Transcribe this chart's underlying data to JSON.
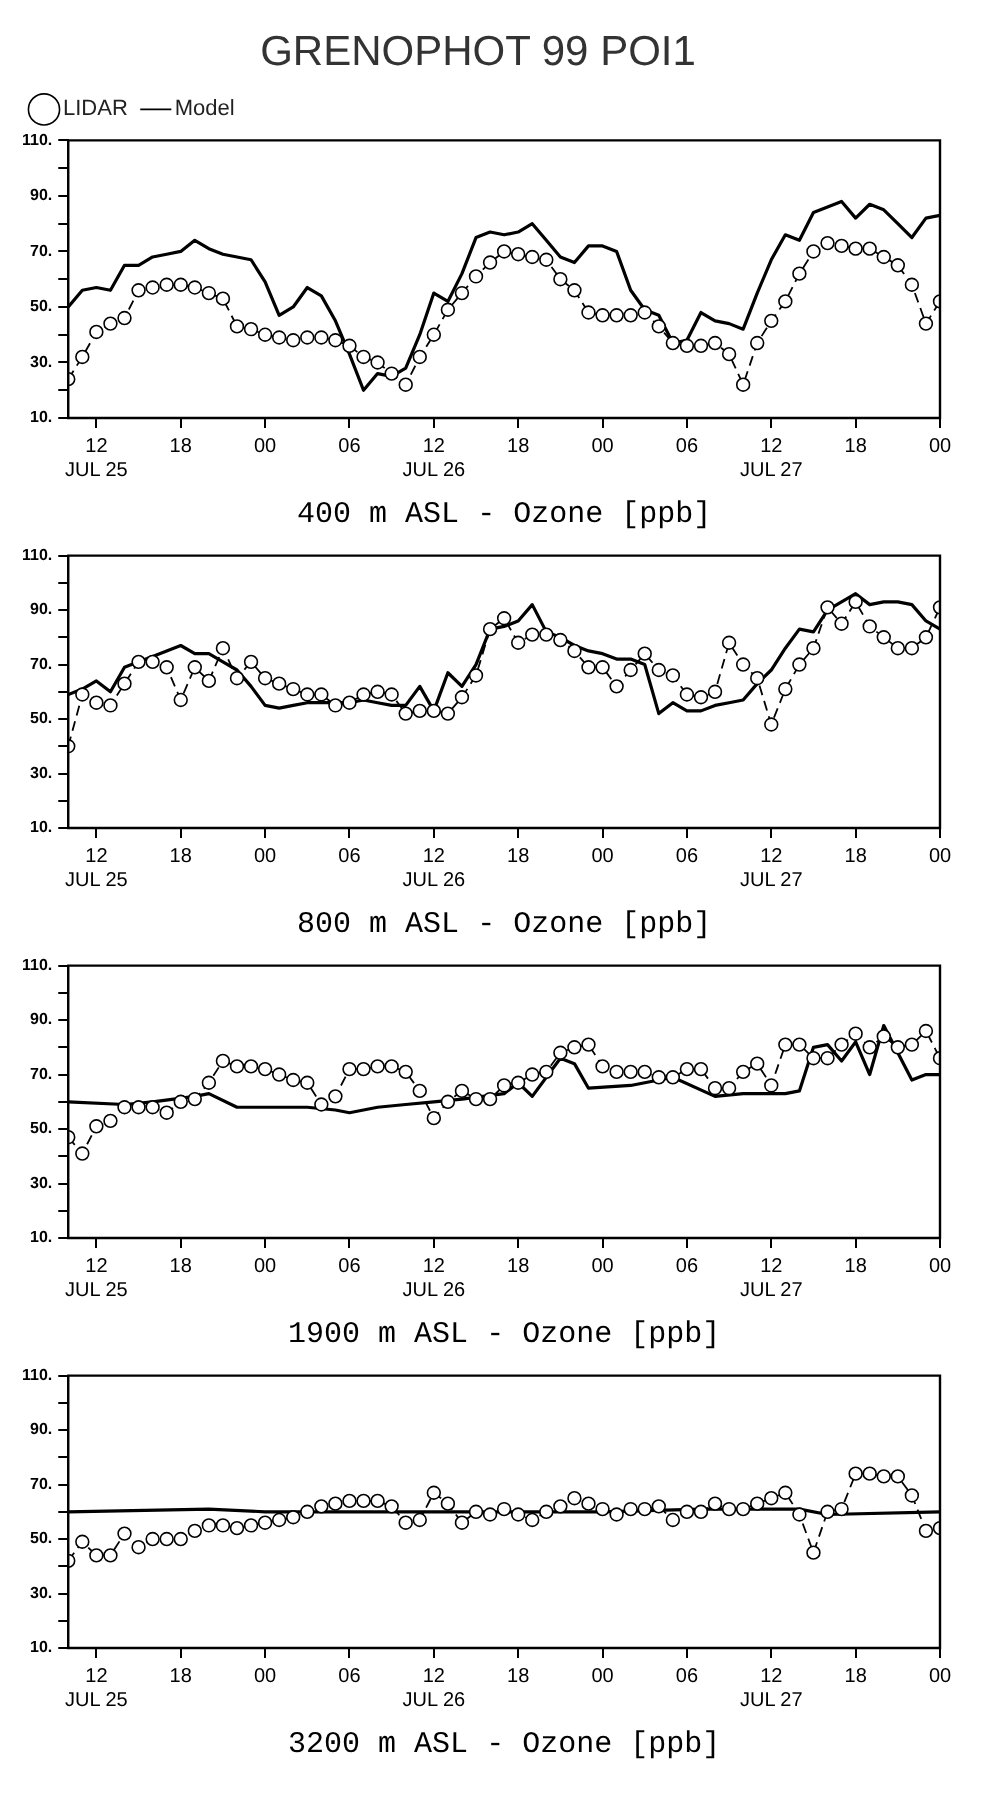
{
  "chart_data": [
    {
      "type": "line",
      "title": "GRENOPHOT 99 POI1",
      "xlabel": "400 m ASL - Ozone [ppb]",
      "legend": "top left",
      "grid": false,
      "xlim": [
        "--07-25T10:00",
        "--07-28T00:00"
      ],
      "xticks": [
        {
          "value": "--07-25T12:00",
          "label": "12\nJUL 25"
        },
        {
          "value": "--07-25T18:00",
          "label": "18"
        },
        {
          "value": "--07-26T00:00",
          "label": "00"
        },
        {
          "value": "--07-26T06:00",
          "label": "06"
        },
        {
          "value": "--07-26T12:00",
          "label": "12\nJUL 26"
        },
        {
          "value": "--07-26T18:00",
          "label": "18"
        },
        {
          "value": "--07-27T00:00",
          "label": "00"
        },
        {
          "value": "--07-27T06:00",
          "label": "06"
        },
        {
          "value": "--07-27T12:00",
          "label": "12\nJUL 27"
        },
        {
          "value": "--07-27T18:00",
          "label": "18"
        },
        {
          "value": "--07-28T00:00",
          "label": "00"
        }
      ],
      "ylim": [
        10,
        110
      ],
      "yticks": [
        {
          "value": 10,
          "label": "10."
        },
        {
          "value": 20,
          "label": null
        },
        {
          "value": 30,
          "label": "30."
        },
        {
          "value": 40,
          "label": null
        },
        {
          "value": 50,
          "label": "50."
        },
        {
          "value": 60,
          "label": null
        },
        {
          "value": 70,
          "label": "70."
        },
        {
          "value": 80,
          "label": null
        },
        {
          "value": 90,
          "label": "90."
        },
        {
          "value": 100,
          "label": null
        },
        {
          "value": 110,
          "label": "110."
        }
      ],
      "x": [
        "--07-25T10:00",
        "--07-25T11:00",
        "--07-25T12:00",
        "--07-25T13:00",
        "--07-25T14:00",
        "--07-25T15:00",
        "--07-25T16:00",
        "--07-25T17:00",
        "--07-25T18:00",
        "--07-25T19:00",
        "--07-25T20:00",
        "--07-25T21:00",
        "--07-25T22:00",
        "--07-25T23:00",
        "--07-26T00:00",
        "--07-26T01:00",
        "--07-26T02:00",
        "--07-26T03:00",
        "--07-26T04:00",
        "--07-26T05:00",
        "--07-26T06:00",
        "--07-26T07:00",
        "--07-26T08:00",
        "--07-26T09:00",
        "--07-26T10:00",
        "--07-26T11:00",
        "--07-26T12:00",
        "--07-26T13:00",
        "--07-26T14:00",
        "--07-26T15:00",
        "--07-26T16:00",
        "--07-26T17:00",
        "--07-26T18:00",
        "--07-26T19:00",
        "--07-26T20:00",
        "--07-26T21:00",
        "--07-26T22:00",
        "--07-26T23:00",
        "--07-27T00:00",
        "--07-27T01:00",
        "--07-27T02:00",
        "--07-27T03:00",
        "--07-27T04:00",
        "--07-27T05:00",
        "--07-27T06:00",
        "--07-27T07:00",
        "--07-27T08:00",
        "--07-27T09:00",
        "--07-27T10:00",
        "--07-27T11:00",
        "--07-27T12:00",
        "--07-27T13:00",
        "--07-27T14:00",
        "--07-27T15:00",
        "--07-27T16:00",
        "--07-27T17:00",
        "--07-27T18:00",
        "--07-27T19:00",
        "--07-27T20:00",
        "--07-27T21:00",
        "--07-27T22:00",
        "--07-27T23:00",
        "--07-28T00:00"
      ],
      "series": [
        {
          "name": "LIDAR",
          "color": "#000000",
          "marker": "circle",
          "line_style": "dashed",
          "values": [
            24,
            32,
            41,
            44,
            46,
            56,
            57,
            58,
            58,
            57,
            55,
            53,
            43,
            42,
            40,
            39,
            38,
            39,
            39,
            38,
            36,
            32,
            30,
            26,
            22,
            32,
            40,
            49,
            55,
            61,
            66,
            70,
            69,
            68,
            67,
            60,
            56,
            48,
            47,
            47,
            47,
            48,
            43,
            37,
            36,
            36,
            37,
            33,
            22,
            37,
            45,
            52,
            62,
            70,
            73,
            72,
            71,
            71,
            68,
            65,
            58,
            44,
            52
          ]
        },
        {
          "name": "Model",
          "color": "#000000",
          "marker": "none",
          "line_style": "solid",
          "values": [
            50,
            56,
            57,
            56,
            65,
            65,
            68,
            69,
            70,
            74,
            71,
            69,
            68,
            67,
            59,
            47,
            50,
            57,
            54,
            45,
            33,
            20,
            26,
            25,
            28,
            40,
            55,
            52,
            62,
            75,
            77,
            76,
            77,
            80,
            74,
            68,
            66,
            72,
            72,
            70,
            56,
            49,
            47,
            37,
            38,
            48,
            45,
            44,
            42,
            55,
            67,
            76,
            74,
            84,
            86,
            88,
            82,
            87,
            85,
            80,
            75,
            82,
            83
          ]
        }
      ]
    },
    {
      "type": "line",
      "xlabel": "800 m ASL - Ozone [ppb]",
      "grid": false,
      "xlim": [
        "--07-25T10:00",
        "--07-28T00:00"
      ],
      "xticks": [
        {
          "value": "--07-25T12:00",
          "label": "12\nJUL 25"
        },
        {
          "value": "--07-25T18:00",
          "label": "18"
        },
        {
          "value": "--07-26T00:00",
          "label": "00"
        },
        {
          "value": "--07-26T06:00",
          "label": "06"
        },
        {
          "value": "--07-26T12:00",
          "label": "12\nJUL 26"
        },
        {
          "value": "--07-26T18:00",
          "label": "18"
        },
        {
          "value": "--07-27T00:00",
          "label": "00"
        },
        {
          "value": "--07-27T06:00",
          "label": "06"
        },
        {
          "value": "--07-27T12:00",
          "label": "12\nJUL 27"
        },
        {
          "value": "--07-27T18:00",
          "label": "18"
        },
        {
          "value": "--07-28T00:00",
          "label": "00"
        }
      ],
      "ylim": [
        10,
        110
      ],
      "yticks": [
        {
          "value": 10,
          "label": "10."
        },
        {
          "value": 20,
          "label": null
        },
        {
          "value": 30,
          "label": "30."
        },
        {
          "value": 40,
          "label": null
        },
        {
          "value": 50,
          "label": "50."
        },
        {
          "value": 60,
          "label": null
        },
        {
          "value": 70,
          "label": "70."
        },
        {
          "value": 80,
          "label": null
        },
        {
          "value": 90,
          "label": "90."
        },
        {
          "value": 100,
          "label": null
        },
        {
          "value": 110,
          "label": "110."
        }
      ],
      "x": [
        "--07-25T10:00",
        "--07-25T11:00",
        "--07-25T12:00",
        "--07-25T13:00",
        "--07-25T14:00",
        "--07-25T15:00",
        "--07-25T16:00",
        "--07-25T17:00",
        "--07-25T18:00",
        "--07-25T19:00",
        "--07-25T20:00",
        "--07-25T21:00",
        "--07-25T22:00",
        "--07-25T23:00",
        "--07-26T00:00",
        "--07-26T01:00",
        "--07-26T02:00",
        "--07-26T03:00",
        "--07-26T04:00",
        "--07-26T05:00",
        "--07-26T06:00",
        "--07-26T07:00",
        "--07-26T08:00",
        "--07-26T09:00",
        "--07-26T10:00",
        "--07-26T11:00",
        "--07-26T12:00",
        "--07-26T13:00",
        "--07-26T14:00",
        "--07-26T15:00",
        "--07-26T16:00",
        "--07-26T17:00",
        "--07-26T18:00",
        "--07-26T19:00",
        "--07-26T20:00",
        "--07-26T21:00",
        "--07-26T22:00",
        "--07-26T23:00",
        "--07-27T00:00",
        "--07-27T01:00",
        "--07-27T02:00",
        "--07-27T03:00",
        "--07-27T04:00",
        "--07-27T05:00",
        "--07-27T06:00",
        "--07-27T07:00",
        "--07-27T08:00",
        "--07-27T09:00",
        "--07-27T10:00",
        "--07-27T11:00",
        "--07-27T12:00",
        "--07-27T13:00",
        "--07-27T14:00",
        "--07-27T15:00",
        "--07-27T16:00",
        "--07-27T17:00",
        "--07-27T18:00",
        "--07-27T19:00",
        "--07-27T20:00",
        "--07-27T21:00",
        "--07-27T22:00",
        "--07-27T23:00",
        "--07-28T00:00"
      ],
      "series": [
        {
          "color": "#000000",
          "marker": "circle",
          "line_style": "dashed",
          "values": [
            40,
            59,
            56,
            55,
            63,
            71,
            71,
            69,
            57,
            69,
            64,
            76,
            65,
            71,
            65,
            63,
            61,
            59,
            59,
            55,
            56,
            59,
            60,
            59,
            52,
            53,
            53,
            52,
            58,
            66,
            83,
            87,
            78,
            81,
            81,
            79,
            75,
            69,
            69,
            62,
            68,
            74,
            68,
            66,
            59,
            58,
            60,
            78,
            70,
            65,
            48,
            61,
            70,
            76,
            91,
            85,
            93,
            84,
            80,
            76,
            76,
            80,
            91
          ]
        },
        {
          "color": "#000000",
          "marker": "none",
          "line_style": "solid",
          "values": [
            59,
            61,
            64,
            60,
            69,
            71,
            73,
            75,
            77,
            74,
            74,
            71,
            68,
            62,
            55,
            54,
            55,
            56,
            56,
            56,
            56,
            57,
            56,
            55,
            55,
            62,
            53,
            67,
            62,
            70,
            83,
            84,
            86,
            92,
            82,
            80,
            77,
            75,
            74,
            72,
            72,
            70,
            52,
            56,
            53,
            53,
            55,
            56,
            57,
            63,
            68,
            76,
            83,
            82,
            90,
            93,
            96,
            92,
            93,
            93,
            92,
            86,
            83
          ]
        }
      ]
    },
    {
      "type": "line",
      "xlabel": "1900 m ASL - Ozone [ppb]",
      "grid": false,
      "xlim": [
        "--07-25T10:00",
        "--07-28T00:00"
      ],
      "xticks": [
        {
          "value": "--07-25T12:00",
          "label": "12\nJUL 25"
        },
        {
          "value": "--07-25T18:00",
          "label": "18"
        },
        {
          "value": "--07-26T00:00",
          "label": "00"
        },
        {
          "value": "--07-26T06:00",
          "label": "06"
        },
        {
          "value": "--07-26T12:00",
          "label": "12\nJUL 26"
        },
        {
          "value": "--07-26T18:00",
          "label": "18"
        },
        {
          "value": "--07-27T00:00",
          "label": "00"
        },
        {
          "value": "--07-27T06:00",
          "label": "06"
        },
        {
          "value": "--07-27T12:00",
          "label": "12\nJUL 27"
        },
        {
          "value": "--07-27T18:00",
          "label": "18"
        },
        {
          "value": "--07-28T00:00",
          "label": "00"
        }
      ],
      "ylim": [
        10,
        110
      ],
      "yticks": [
        {
          "value": 10,
          "label": "10."
        },
        {
          "value": 20,
          "label": null
        },
        {
          "value": 30,
          "label": "30."
        },
        {
          "value": 40,
          "label": null
        },
        {
          "value": 50,
          "label": "50."
        },
        {
          "value": 60,
          "label": null
        },
        {
          "value": 70,
          "label": "70."
        },
        {
          "value": 80,
          "label": null
        },
        {
          "value": 90,
          "label": "90."
        },
        {
          "value": 100,
          "label": null
        },
        {
          "value": 110,
          "label": "110."
        }
      ],
      "x": [
        "--07-25T10:00",
        "--07-25T11:00",
        "--07-25T12:00",
        "--07-25T13:00",
        "--07-25T14:00",
        "--07-25T15:00",
        "--07-25T16:00",
        "--07-25T17:00",
        "--07-25T18:00",
        "--07-25T19:00",
        "--07-25T20:00",
        "--07-25T21:00",
        "--07-25T22:00",
        "--07-25T23:00",
        "--07-26T00:00",
        "--07-26T01:00",
        "--07-26T02:00",
        "--07-26T03:00",
        "--07-26T04:00",
        "--07-26T05:00",
        "--07-26T06:00",
        "--07-26T07:00",
        "--07-26T08:00",
        "--07-26T09:00",
        "--07-26T10:00",
        "--07-26T11:00",
        "--07-26T12:00",
        "--07-26T13:00",
        "--07-26T14:00",
        "--07-26T15:00",
        "--07-26T16:00",
        "--07-26T17:00",
        "--07-26T18:00",
        "--07-26T19:00",
        "--07-26T20:00",
        "--07-26T21:00",
        "--07-26T22:00",
        "--07-26T23:00",
        "--07-27T00:00",
        "--07-27T01:00",
        "--07-27T02:00",
        "--07-27T03:00",
        "--07-27T04:00",
        "--07-27T05:00",
        "--07-27T06:00",
        "--07-27T07:00",
        "--07-27T08:00",
        "--07-27T09:00",
        "--07-27T10:00",
        "--07-27T11:00",
        "--07-27T12:00",
        "--07-27T13:00",
        "--07-27T14:00",
        "--07-27T15:00",
        "--07-27T16:00",
        "--07-27T17:00",
        "--07-27T18:00",
        "--07-27T19:00",
        "--07-27T20:00",
        "--07-27T21:00",
        "--07-27T22:00",
        "--07-27T23:00",
        "--07-28T00:00"
      ],
      "series": [
        {
          "color": "#000000",
          "marker": "circle",
          "line_style": "dashed",
          "values": [
            47,
            41,
            51,
            53,
            58,
            58,
            58,
            56,
            60,
            61,
            67,
            75,
            73,
            73,
            72,
            70,
            68,
            67,
            59,
            62,
            72,
            72,
            73,
            73,
            71,
            64,
            54,
            60,
            64,
            61,
            61,
            66,
            67,
            70,
            71,
            78,
            80,
            81,
            73,
            71,
            71,
            71,
            69,
            69,
            72,
            72,
            65,
            65,
            71,
            74,
            66,
            81,
            81,
            76,
            76,
            81,
            85,
            80,
            84,
            80,
            81,
            86,
            76
          ]
        },
        {
          "color": "#000000",
          "marker": "none",
          "line_style": "solid",
          "x": [
            "--07-25T10:00",
            "--07-25T14:00",
            "--07-25T16:00",
            "--07-25T19:00",
            "--07-25T20:00",
            "--07-25T22:00",
            "--07-26T00:00",
            "--07-26T03:00",
            "--07-26T05:00",
            "--07-26T06:00",
            "--07-26T08:00",
            "--07-26T10:00",
            "--07-26T12:00",
            "--07-26T14:00",
            "--07-26T17:00",
            "--07-26T18:00",
            "--07-26T19:00",
            "--07-26T21:00",
            "--07-26T22:00",
            "--07-26T23:00",
            "--07-27T02:00",
            "--07-27T04:00",
            "--07-27T05:00",
            "--07-27T08:00",
            "--07-27T10:00",
            "--07-27T13:00",
            "--07-27T14:00",
            "--07-27T15:00",
            "--07-27T16:00",
            "--07-27T17:00",
            "--07-27T18:00",
            "--07-27T19:00",
            "--07-27T20:00",
            "--07-27T22:00",
            "--07-27T23:00",
            "--07-28T00:00"
          ],
          "values": [
            60,
            59,
            60,
            62,
            63,
            58,
            58,
            58,
            57,
            56,
            58,
            59,
            60,
            61,
            63,
            67,
            62,
            76,
            74,
            65,
            66,
            68,
            69,
            62,
            63,
            63,
            64,
            80,
            81,
            75,
            82,
            70,
            88,
            68,
            70,
            70
          ]
        }
      ]
    },
    {
      "type": "line",
      "xlabel": "3200 m ASL - Ozone [ppb]",
      "grid": false,
      "xlim": [
        "--07-25T10:00",
        "--07-28T00:00"
      ],
      "xticks": [
        {
          "value": "--07-25T12:00",
          "label": "12\nJUL 25"
        },
        {
          "value": "--07-25T18:00",
          "label": "18"
        },
        {
          "value": "--07-26T00:00",
          "label": "00"
        },
        {
          "value": "--07-26T06:00",
          "label": "06"
        },
        {
          "value": "--07-26T12:00",
          "label": "12\nJUL 26"
        },
        {
          "value": "--07-26T18:00",
          "label": "18"
        },
        {
          "value": "--07-27T00:00",
          "label": "00"
        },
        {
          "value": "--07-27T06:00",
          "label": "06"
        },
        {
          "value": "--07-27T12:00",
          "label": "12\nJUL 27"
        },
        {
          "value": "--07-27T18:00",
          "label": "18"
        },
        {
          "value": "--07-28T00:00",
          "label": "00"
        }
      ],
      "ylim": [
        10,
        110
      ],
      "yticks": [
        {
          "value": 10,
          "label": "10."
        },
        {
          "value": 20,
          "label": null
        },
        {
          "value": 30,
          "label": "30."
        },
        {
          "value": 40,
          "label": null
        },
        {
          "value": 50,
          "label": "50."
        },
        {
          "value": 60,
          "label": null
        },
        {
          "value": 70,
          "label": "70."
        },
        {
          "value": 80,
          "label": null
        },
        {
          "value": 90,
          "label": "90."
        },
        {
          "value": 100,
          "label": null
        },
        {
          "value": 110,
          "label": "110."
        }
      ],
      "x": [
        "--07-25T10:00",
        "--07-25T11:00",
        "--07-25T12:00",
        "--07-25T13:00",
        "--07-25T14:00",
        "--07-25T15:00",
        "--07-25T16:00",
        "--07-25T17:00",
        "--07-25T18:00",
        "--07-25T19:00",
        "--07-25T20:00",
        "--07-25T21:00",
        "--07-25T22:00",
        "--07-25T23:00",
        "--07-26T00:00",
        "--07-26T01:00",
        "--07-26T02:00",
        "--07-26T03:00",
        "--07-26T04:00",
        "--07-26T05:00",
        "--07-26T06:00",
        "--07-26T07:00",
        "--07-26T08:00",
        "--07-26T09:00",
        "--07-26T10:00",
        "--07-26T11:00",
        "--07-26T12:00",
        "--07-26T13:00",
        "--07-26T14:00",
        "--07-26T15:00",
        "--07-26T16:00",
        "--07-26T17:00",
        "--07-26T18:00",
        "--07-26T19:00",
        "--07-26T20:00",
        "--07-26T21:00",
        "--07-26T22:00",
        "--07-26T23:00",
        "--07-27T00:00",
        "--07-27T01:00",
        "--07-27T02:00",
        "--07-27T03:00",
        "--07-27T04:00",
        "--07-27T05:00",
        "--07-27T06:00",
        "--07-27T07:00",
        "--07-27T08:00",
        "--07-27T09:00",
        "--07-27T10:00",
        "--07-27T11:00",
        "--07-27T12:00",
        "--07-27T13:00",
        "--07-27T14:00",
        "--07-27T15:00",
        "--07-27T16:00",
        "--07-27T17:00",
        "--07-27T18:00",
        "--07-27T19:00",
        "--07-27T20:00",
        "--07-27T21:00",
        "--07-27T22:00",
        "--07-27T23:00",
        "--07-28T00:00"
      ],
      "series": [
        {
          "color": "#000000",
          "marker": "circle",
          "line_style": "dashed",
          "values": [
            42,
            49,
            44,
            44,
            52,
            47,
            50,
            50,
            50,
            53,
            55,
            55,
            54,
            55,
            56,
            57,
            58,
            60,
            62,
            63,
            64,
            64,
            64,
            62,
            56,
            57,
            67,
            63,
            56,
            60,
            59,
            61,
            59,
            57,
            60,
            62,
            65,
            63,
            61,
            59,
            61,
            61,
            62,
            57,
            60,
            60,
            63,
            61,
            61,
            63,
            65,
            67,
            59,
            45,
            60,
            61,
            74,
            74,
            73,
            73,
            66,
            53,
            54
          ]
        },
        {
          "color": "#000000",
          "marker": "none",
          "line_style": "solid",
          "x": [
            "--07-25T10:00",
            "--07-25T20:00",
            "--07-26T00:00",
            "--07-26T12:00",
            "--07-27T00:00",
            "--07-27T07:00",
            "--07-27T14:00",
            "--07-27T16:00",
            "--07-28T00:00"
          ],
          "values": [
            60,
            61,
            60,
            60,
            60,
            61,
            61,
            59,
            60
          ]
        }
      ]
    }
  ]
}
